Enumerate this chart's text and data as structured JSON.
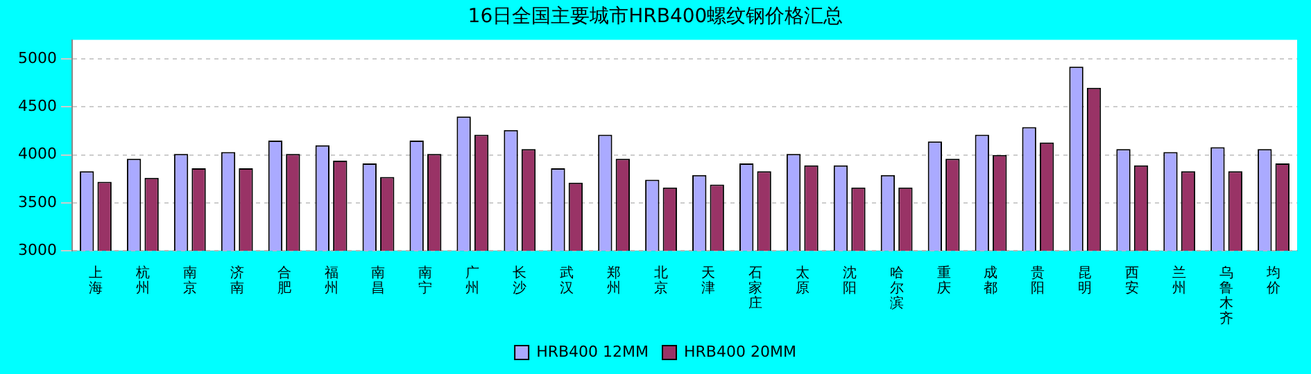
{
  "chart_data": {
    "type": "bar",
    "title": "16日全国主要城市HRB400螺纹钢价格汇总",
    "categories": [
      "上海",
      "杭州",
      "南京",
      "济南",
      "合肥",
      "福州",
      "南昌",
      "南宁",
      "广州",
      "长沙",
      "武汉",
      "郑州",
      "北京",
      "天津",
      "石家庄",
      "太原",
      "沈阳",
      "哈尔滨",
      "重庆",
      "成都",
      "贵阳",
      "昆明",
      "西安",
      "兰州",
      "乌鲁木齐",
      "均价"
    ],
    "series": [
      {
        "name": "HRB400 12MM",
        "color": "#aaaaff",
        "values": [
          3830,
          3960,
          4010,
          4030,
          4150,
          4100,
          3910,
          4150,
          4400,
          4260,
          3860,
          4210,
          3740,
          3790,
          3910,
          4010,
          3890,
          3790,
          4140,
          4210,
          4290,
          4920,
          4060,
          4030,
          4080,
          4060
        ]
      },
      {
        "name": "HRB400 20MM",
        "color": "#993366",
        "values": [
          3720,
          3760,
          3860,
          3860,
          4010,
          3940,
          3770,
          4010,
          4210,
          4060,
          3710,
          3960,
          3660,
          3690,
          3830,
          3890,
          3660,
          3660,
          3960,
          4000,
          4130,
          4700,
          3890,
          3830,
          3830,
          3910
        ]
      }
    ],
    "ylim": [
      3000,
      5200
    ],
    "yticks": [
      3000,
      3500,
      4000,
      4500,
      5000
    ],
    "grid": "y",
    "legend": "bottom"
  }
}
